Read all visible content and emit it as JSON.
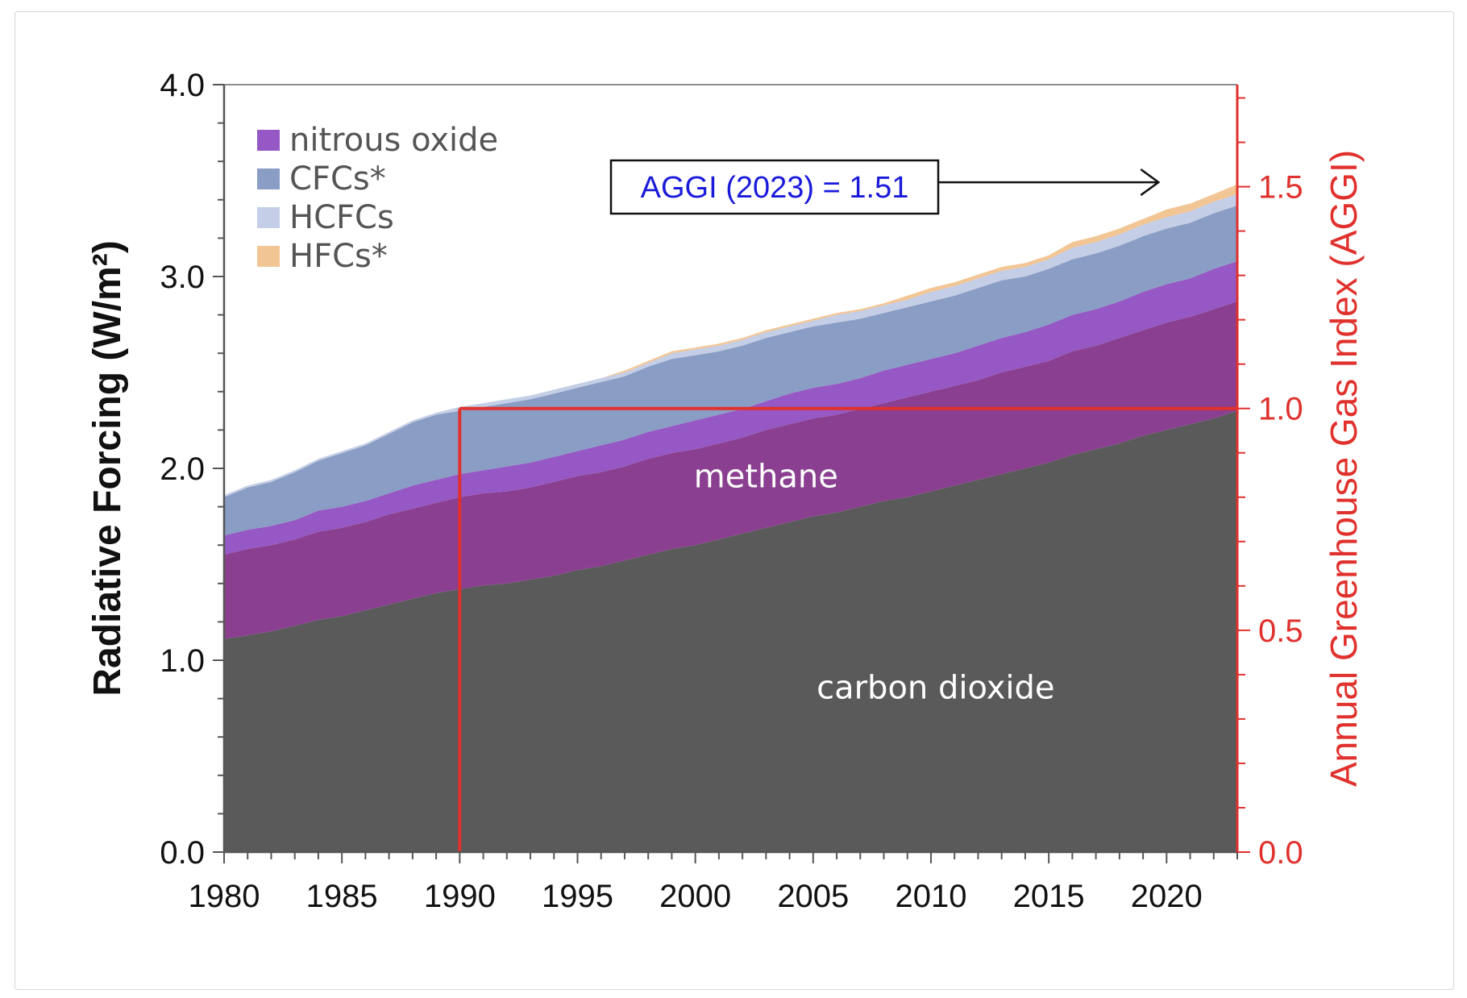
{
  "chart_data": {
    "type": "area",
    "x": [
      1980,
      1981,
      1982,
      1983,
      1984,
      1985,
      1986,
      1987,
      1988,
      1989,
      1990,
      1991,
      1992,
      1993,
      1994,
      1995,
      1996,
      1997,
      1998,
      1999,
      2000,
      2001,
      2002,
      2003,
      2004,
      2005,
      2006,
      2007,
      2008,
      2009,
      2010,
      2011,
      2012,
      2013,
      2014,
      2015,
      2016,
      2017,
      2018,
      2019,
      2020,
      2021,
      2022,
      2023
    ],
    "series": [
      {
        "name": "carbon dioxide",
        "color": "#5a5a5a",
        "values": [
          1.11,
          1.13,
          1.15,
          1.18,
          1.21,
          1.23,
          1.26,
          1.29,
          1.32,
          1.35,
          1.37,
          1.39,
          1.4,
          1.42,
          1.44,
          1.47,
          1.49,
          1.52,
          1.55,
          1.58,
          1.6,
          1.63,
          1.66,
          1.69,
          1.72,
          1.75,
          1.77,
          1.8,
          1.83,
          1.85,
          1.88,
          1.91,
          1.94,
          1.97,
          2.0,
          2.03,
          2.07,
          2.1,
          2.13,
          2.17,
          2.2,
          2.23,
          2.26,
          2.3
        ]
      },
      {
        "name": "methane",
        "color": "#8a3f90",
        "values": [
          0.44,
          0.45,
          0.45,
          0.45,
          0.46,
          0.46,
          0.46,
          0.47,
          0.47,
          0.47,
          0.48,
          0.48,
          0.48,
          0.48,
          0.49,
          0.49,
          0.49,
          0.49,
          0.5,
          0.5,
          0.5,
          0.5,
          0.5,
          0.51,
          0.51,
          0.51,
          0.51,
          0.51,
          0.51,
          0.52,
          0.52,
          0.52,
          0.52,
          0.53,
          0.53,
          0.53,
          0.54,
          0.54,
          0.55,
          0.55,
          0.56,
          0.56,
          0.57,
          0.57
        ]
      },
      {
        "name": "nitrous oxide",
        "color": "#9558c4",
        "values": [
          0.1,
          0.1,
          0.1,
          0.1,
          0.11,
          0.11,
          0.11,
          0.11,
          0.12,
          0.12,
          0.12,
          0.12,
          0.13,
          0.13,
          0.13,
          0.13,
          0.14,
          0.14,
          0.14,
          0.14,
          0.15,
          0.15,
          0.15,
          0.15,
          0.16,
          0.16,
          0.16,
          0.16,
          0.17,
          0.17,
          0.17,
          0.17,
          0.18,
          0.18,
          0.18,
          0.19,
          0.19,
          0.19,
          0.19,
          0.2,
          0.2,
          0.2,
          0.21,
          0.21
        ]
      },
      {
        "name": "CFCs*",
        "color": "#8a9dc4",
        "values": [
          0.2,
          0.22,
          0.23,
          0.25,
          0.26,
          0.28,
          0.29,
          0.31,
          0.33,
          0.34,
          0.33,
          0.33,
          0.33,
          0.33,
          0.33,
          0.33,
          0.33,
          0.33,
          0.34,
          0.35,
          0.34,
          0.33,
          0.33,
          0.33,
          0.32,
          0.32,
          0.32,
          0.31,
          0.3,
          0.3,
          0.3,
          0.3,
          0.3,
          0.3,
          0.29,
          0.29,
          0.29,
          0.29,
          0.29,
          0.29,
          0.29,
          0.29,
          0.29,
          0.29
        ]
      },
      {
        "name": "HCFCs",
        "color": "#c4cee6",
        "values": [
          0.01,
          0.01,
          0.01,
          0.01,
          0.01,
          0.01,
          0.01,
          0.01,
          0.01,
          0.01,
          0.02,
          0.02,
          0.02,
          0.02,
          0.02,
          0.02,
          0.02,
          0.02,
          0.02,
          0.03,
          0.03,
          0.03,
          0.03,
          0.03,
          0.03,
          0.03,
          0.04,
          0.04,
          0.04,
          0.04,
          0.05,
          0.05,
          0.05,
          0.05,
          0.05,
          0.05,
          0.06,
          0.06,
          0.06,
          0.06,
          0.06,
          0.06,
          0.06,
          0.06
        ]
      },
      {
        "name": "HFCs*",
        "color": "#f2c595",
        "values": [
          0.0,
          0.0,
          0.0,
          0.0,
          0.0,
          0.0,
          0.0,
          0.0,
          0.0,
          0.0,
          0.0,
          0.0,
          0.0,
          0.0,
          0.0,
          0.0,
          0.0,
          0.01,
          0.01,
          0.01,
          0.01,
          0.01,
          0.01,
          0.01,
          0.01,
          0.01,
          0.01,
          0.01,
          0.01,
          0.02,
          0.02,
          0.02,
          0.02,
          0.02,
          0.02,
          0.02,
          0.03,
          0.03,
          0.03,
          0.03,
          0.04,
          0.04,
          0.04,
          0.05
        ]
      }
    ],
    "stacked": true,
    "xlim": [
      1980,
      2023
    ],
    "ylim": [
      0,
      4.0
    ],
    "ylabel": "Radiative Forcing (W/m²)",
    "y_ticks": [
      "0.0",
      "1.0",
      "2.0",
      "3.0",
      "4.0"
    ],
    "x_ticks": [
      "1980",
      "1985",
      "1990",
      "1995",
      "2000",
      "2005",
      "2010",
      "2015",
      "2020"
    ],
    "y2label": "Annual Greenhouse Gas Index (AGGI)",
    "y2lim": [
      0,
      1.73
    ],
    "y2_ticks": [
      "0.0",
      "0.5",
      "1.0",
      "1.5"
    ],
    "aggi_color": "#e0312d",
    "aggi_reference": {
      "year": 1990,
      "index": 1.0
    },
    "legend": {
      "placement": "top-left",
      "entries": [
        "nitrous oxide",
        "CFCs*",
        "HCFCs",
        "HFCs*"
      ]
    },
    "area_labels": [
      "methane",
      "carbon dioxide"
    ],
    "annotation": {
      "text": "AGGI (2023) = 1.51",
      "target_year": 2020,
      "target_index": 1.51
    }
  }
}
